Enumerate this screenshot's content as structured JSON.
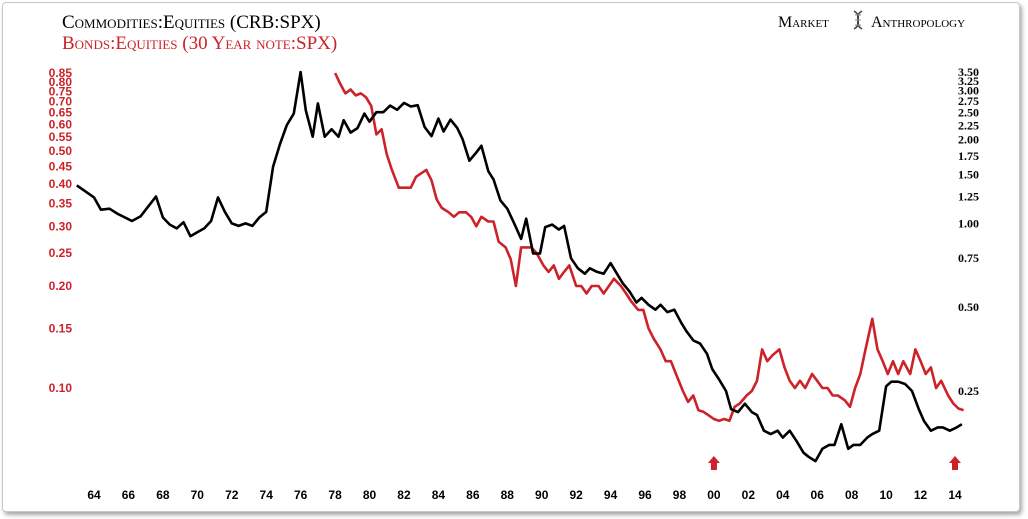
{
  "brand": {
    "left": "Market",
    "right": "Anthropology"
  },
  "colors": {
    "commodities": "#000000",
    "bonds": "#cc2229",
    "markers": "#cc2229"
  },
  "chart_data": {
    "type": "line",
    "title_lines": [
      {
        "text": "Commodities:Equities (CRB:SPX)",
        "color": "#000000"
      },
      {
        "text": "Bonds:Equities  (30 Year note:SPX)",
        "color": "#cc2229"
      }
    ],
    "x_tick_labels": [
      "64",
      "66",
      "68",
      "70",
      "72",
      "74",
      "76",
      "78",
      "80",
      "82",
      "84",
      "86",
      "88",
      "90",
      "92",
      "94",
      "96",
      "98",
      "00",
      "02",
      "04",
      "06",
      "08",
      "10",
      "12",
      "14"
    ],
    "x_range": [
      1963,
      2015
    ],
    "left_axis": {
      "scale": "log",
      "ticks": [
        "0.85",
        "0.80",
        "0.75",
        "0.70",
        "0.65",
        "0.60",
        "0.55",
        "0.50",
        "0.45",
        "0.40",
        "0.35",
        "0.30",
        "0.25",
        "0.20",
        "0.15",
        "0.10"
      ],
      "color": "#cc2229",
      "series": "Bonds:Equities"
    },
    "right_axis": {
      "scale": "log",
      "ticks": [
        "3.50",
        "3.25",
        "3.00",
        "2.75",
        "2.50",
        "2.25",
        "2.00",
        "1.75",
        "1.50",
        "1.25",
        "1.00",
        "0.75",
        "0.50",
        "0.25"
      ],
      "color": "#000000",
      "series": "Commodities:Equities"
    },
    "grid": false,
    "markers": [
      {
        "x": 2000,
        "label": "up-arrow"
      },
      {
        "x": 2014,
        "label": "up-arrow"
      }
    ],
    "series": [
      {
        "name": "Commodities:Equities",
        "axis": "right",
        "color": "#000000",
        "points": [
          [
            1963.0,
            1.37
          ],
          [
            1963.6,
            1.29
          ],
          [
            1964.0,
            1.24
          ],
          [
            1964.4,
            1.12
          ],
          [
            1964.9,
            1.13
          ],
          [
            1965.4,
            1.08
          ],
          [
            1965.8,
            1.05
          ],
          [
            1966.2,
            1.02
          ],
          [
            1966.7,
            1.06
          ],
          [
            1967.1,
            1.14
          ],
          [
            1967.6,
            1.25
          ],
          [
            1968.0,
            1.05
          ],
          [
            1968.4,
            0.99
          ],
          [
            1968.8,
            0.96
          ],
          [
            1969.2,
            1.01
          ],
          [
            1969.6,
            0.9
          ],
          [
            1970.0,
            0.93
          ],
          [
            1970.4,
            0.96
          ],
          [
            1970.8,
            1.02
          ],
          [
            1971.2,
            1.24
          ],
          [
            1971.6,
            1.1
          ],
          [
            1972.0,
            1.0
          ],
          [
            1972.4,
            0.98
          ],
          [
            1972.8,
            1.0
          ],
          [
            1973.2,
            0.98
          ],
          [
            1973.6,
            1.05
          ],
          [
            1974.0,
            1.1
          ],
          [
            1974.4,
            1.6
          ],
          [
            1974.8,
            1.93
          ],
          [
            1975.2,
            2.26
          ],
          [
            1975.6,
            2.48
          ],
          [
            1976.0,
            3.5
          ],
          [
            1976.3,
            2.55
          ],
          [
            1976.7,
            2.05
          ],
          [
            1977.0,
            2.7
          ],
          [
            1977.4,
            2.05
          ],
          [
            1977.8,
            2.18
          ],
          [
            1978.2,
            2.05
          ],
          [
            1978.5,
            2.35
          ],
          [
            1978.9,
            2.12
          ],
          [
            1979.3,
            2.2
          ],
          [
            1979.7,
            2.48
          ],
          [
            1980.0,
            2.32
          ],
          [
            1980.4,
            2.51
          ],
          [
            1980.8,
            2.51
          ],
          [
            1981.2,
            2.65
          ],
          [
            1981.6,
            2.56
          ],
          [
            1982.0,
            2.71
          ],
          [
            1982.4,
            2.63
          ],
          [
            1982.8,
            2.66
          ],
          [
            1983.2,
            2.22
          ],
          [
            1983.6,
            2.06
          ],
          [
            1984.0,
            2.38
          ],
          [
            1984.3,
            2.14
          ],
          [
            1984.7,
            2.36
          ],
          [
            1985.1,
            2.2
          ],
          [
            1985.4,
            2.01
          ],
          [
            1985.8,
            1.68
          ],
          [
            1986.2,
            1.8
          ],
          [
            1986.5,
            1.9
          ],
          [
            1986.9,
            1.54
          ],
          [
            1987.2,
            1.44
          ],
          [
            1987.6,
            1.21
          ],
          [
            1988.0,
            1.13
          ],
          [
            1988.4,
            1.0
          ],
          [
            1988.8,
            0.88
          ],
          [
            1989.1,
            1.04
          ],
          [
            1989.5,
            0.78
          ],
          [
            1989.9,
            0.78
          ],
          [
            1990.2,
            0.97
          ],
          [
            1990.6,
            0.99
          ],
          [
            1991.0,
            0.95
          ],
          [
            1991.3,
            0.98
          ],
          [
            1991.7,
            0.75
          ],
          [
            1992.1,
            0.69
          ],
          [
            1992.5,
            0.66
          ],
          [
            1992.8,
            0.69
          ],
          [
            1993.2,
            0.67
          ],
          [
            1993.6,
            0.66
          ],
          [
            1994.0,
            0.72
          ],
          [
            1994.3,
            0.67
          ],
          [
            1994.7,
            0.61
          ],
          [
            1995.1,
            0.57
          ],
          [
            1995.5,
            0.52
          ],
          [
            1995.8,
            0.54
          ],
          [
            1996.2,
            0.51
          ],
          [
            1996.6,
            0.49
          ],
          [
            1996.9,
            0.51
          ],
          [
            1997.3,
            0.48
          ],
          [
            1997.7,
            0.49
          ],
          [
            1998.1,
            0.44
          ],
          [
            1998.4,
            0.41
          ],
          [
            1998.8,
            0.38
          ],
          [
            1999.2,
            0.37
          ],
          [
            1999.6,
            0.34
          ],
          [
            1999.9,
            0.3
          ],
          [
            2000.3,
            0.275
          ],
          [
            2000.7,
            0.25
          ],
          [
            2001.0,
            0.215
          ],
          [
            2001.4,
            0.21
          ],
          [
            2001.8,
            0.225
          ],
          [
            2002.2,
            0.21
          ],
          [
            2002.5,
            0.205
          ],
          [
            2002.9,
            0.18
          ],
          [
            2003.3,
            0.175
          ],
          [
            2003.7,
            0.18
          ],
          [
            2004.0,
            0.17
          ],
          [
            2004.4,
            0.18
          ],
          [
            2004.8,
            0.165
          ],
          [
            2005.2,
            0.15
          ],
          [
            2005.5,
            0.145
          ],
          [
            2005.9,
            0.14
          ],
          [
            2006.3,
            0.155
          ],
          [
            2006.7,
            0.16
          ],
          [
            2007.0,
            0.16
          ],
          [
            2007.4,
            0.19
          ],
          [
            2007.8,
            0.155
          ],
          [
            2008.1,
            0.16
          ],
          [
            2008.5,
            0.16
          ],
          [
            2008.9,
            0.17
          ],
          [
            2009.2,
            0.175
          ],
          [
            2009.6,
            0.18
          ],
          [
            2010.0,
            0.26
          ],
          [
            2010.3,
            0.27
          ],
          [
            2010.7,
            0.27
          ],
          [
            2011.1,
            0.265
          ],
          [
            2011.5,
            0.25
          ],
          [
            2011.9,
            0.215
          ],
          [
            2012.2,
            0.195
          ],
          [
            2012.6,
            0.18
          ],
          [
            2013.0,
            0.185
          ],
          [
            2013.3,
            0.185
          ],
          [
            2013.7,
            0.18
          ],
          [
            2014.1,
            0.185
          ],
          [
            2014.4,
            0.19
          ]
        ]
      },
      {
        "name": "Bonds:Equities",
        "axis": "left",
        "color": "#cc2229",
        "points": [
          [
            1978.0,
            0.85
          ],
          [
            1978.3,
            0.79
          ],
          [
            1978.6,
            0.74
          ],
          [
            1978.9,
            0.76
          ],
          [
            1979.2,
            0.73
          ],
          [
            1979.5,
            0.74
          ],
          [
            1979.8,
            0.72
          ],
          [
            1980.1,
            0.68
          ],
          [
            1980.4,
            0.56
          ],
          [
            1980.7,
            0.58
          ],
          [
            1981.0,
            0.49
          ],
          [
            1981.3,
            0.44
          ],
          [
            1981.7,
            0.39
          ],
          [
            1982.0,
            0.39
          ],
          [
            1982.4,
            0.39
          ],
          [
            1982.7,
            0.42
          ],
          [
            1983.0,
            0.43
          ],
          [
            1983.3,
            0.44
          ],
          [
            1983.6,
            0.41
          ],
          [
            1983.9,
            0.36
          ],
          [
            1984.2,
            0.34
          ],
          [
            1984.6,
            0.33
          ],
          [
            1984.9,
            0.32
          ],
          [
            1985.2,
            0.33
          ],
          [
            1985.6,
            0.33
          ],
          [
            1985.9,
            0.32
          ],
          [
            1986.2,
            0.3
          ],
          [
            1986.5,
            0.32
          ],
          [
            1986.9,
            0.31
          ],
          [
            1987.2,
            0.31
          ],
          [
            1987.5,
            0.27
          ],
          [
            1987.9,
            0.26
          ],
          [
            1988.2,
            0.24
          ],
          [
            1988.5,
            0.2
          ],
          [
            1988.8,
            0.26
          ],
          [
            1989.1,
            0.26
          ],
          [
            1989.4,
            0.26
          ],
          [
            1989.7,
            0.25
          ],
          [
            1990.1,
            0.23
          ],
          [
            1990.4,
            0.22
          ],
          [
            1990.7,
            0.23
          ],
          [
            1991.0,
            0.21
          ],
          [
            1991.3,
            0.22
          ],
          [
            1991.6,
            0.23
          ],
          [
            1992.0,
            0.2
          ],
          [
            1992.3,
            0.2
          ],
          [
            1992.6,
            0.19
          ],
          [
            1992.9,
            0.2
          ],
          [
            1993.3,
            0.2
          ],
          [
            1993.6,
            0.19
          ],
          [
            1993.9,
            0.2
          ],
          [
            1994.2,
            0.21
          ],
          [
            1994.6,
            0.2
          ],
          [
            1994.9,
            0.19
          ],
          [
            1995.2,
            0.18
          ],
          [
            1995.6,
            0.17
          ],
          [
            1995.9,
            0.17
          ],
          [
            1996.2,
            0.15
          ],
          [
            1996.5,
            0.14
          ],
          [
            1996.9,
            0.13
          ],
          [
            1997.2,
            0.12
          ],
          [
            1997.5,
            0.12
          ],
          [
            1997.8,
            0.11
          ],
          [
            1998.2,
            0.098
          ],
          [
            1998.5,
            0.091
          ],
          [
            1998.8,
            0.095
          ],
          [
            1999.1,
            0.086
          ],
          [
            1999.4,
            0.085
          ],
          [
            1999.7,
            0.083
          ],
          [
            2000.0,
            0.081
          ],
          [
            2000.3,
            0.08
          ],
          [
            2000.6,
            0.081
          ],
          [
            2000.9,
            0.08
          ],
          [
            2001.2,
            0.088
          ],
          [
            2001.5,
            0.09
          ],
          [
            2001.9,
            0.095
          ],
          [
            2002.2,
            0.098
          ],
          [
            2002.5,
            0.105
          ],
          [
            2002.8,
            0.13
          ],
          [
            2003.1,
            0.12
          ],
          [
            2003.4,
            0.125
          ],
          [
            2003.8,
            0.13
          ],
          [
            2004.1,
            0.115
          ],
          [
            2004.4,
            0.105
          ],
          [
            2004.7,
            0.1
          ],
          [
            2005.0,
            0.105
          ],
          [
            2005.3,
            0.1
          ],
          [
            2005.7,
            0.11
          ],
          [
            2006.0,
            0.105
          ],
          [
            2006.3,
            0.1
          ],
          [
            2006.6,
            0.1
          ],
          [
            2006.9,
            0.095
          ],
          [
            2007.2,
            0.095
          ],
          [
            2007.6,
            0.092
          ],
          [
            2007.9,
            0.088
          ],
          [
            2008.2,
            0.1
          ],
          [
            2008.5,
            0.11
          ],
          [
            2008.8,
            0.13
          ],
          [
            2009.2,
            0.16
          ],
          [
            2009.5,
            0.13
          ],
          [
            2009.8,
            0.12
          ],
          [
            2010.1,
            0.11
          ],
          [
            2010.4,
            0.12
          ],
          [
            2010.7,
            0.11
          ],
          [
            2011.0,
            0.12
          ],
          [
            2011.4,
            0.11
          ],
          [
            2011.7,
            0.13
          ],
          [
            2012.0,
            0.12
          ],
          [
            2012.3,
            0.11
          ],
          [
            2012.6,
            0.115
          ],
          [
            2012.9,
            0.1
          ],
          [
            2013.2,
            0.105
          ],
          [
            2013.6,
            0.095
          ],
          [
            2013.9,
            0.09
          ],
          [
            2014.2,
            0.087
          ],
          [
            2014.5,
            0.086
          ]
        ]
      }
    ]
  }
}
